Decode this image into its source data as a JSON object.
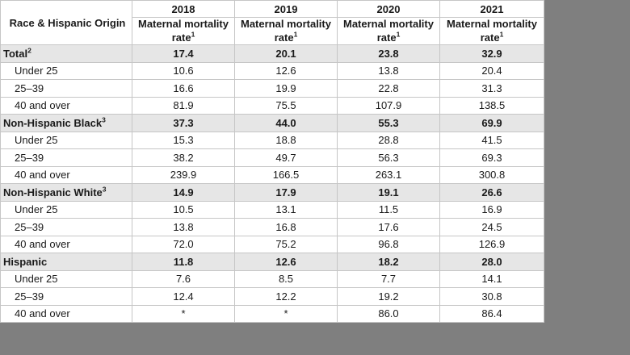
{
  "page": {
    "canvas_bg": "#7f7f7f"
  },
  "table": {
    "corner_header": "Race & Hispanic Origin",
    "years": [
      "2018",
      "2019",
      "2020",
      "2021"
    ],
    "measure_header": {
      "line1": "Maternal mortality",
      "line2": "rate",
      "sup": "1"
    },
    "colors": {
      "group_row_bg": "#e6e6e6",
      "border": "#c6c6c6",
      "text": "#1a1a1a",
      "table_bg": "#ffffff"
    },
    "rows": [
      {
        "label": "Total",
        "sup": "2",
        "type": "group",
        "values": [
          "17.4",
          "20.1",
          "23.8",
          "32.9"
        ]
      },
      {
        "label": "Under 25",
        "type": "sub",
        "values": [
          "10.6",
          "12.6",
          "13.8",
          "20.4"
        ]
      },
      {
        "label": "25–39",
        "type": "sub",
        "values": [
          "16.6",
          "19.9",
          "22.8",
          "31.3"
        ]
      },
      {
        "label": "40 and over",
        "type": "sub",
        "values": [
          "81.9",
          "75.5",
          "107.9",
          "138.5"
        ]
      },
      {
        "label": "Non-Hispanic Black",
        "sup": "3",
        "type": "group",
        "values": [
          "37.3",
          "44.0",
          "55.3",
          "69.9"
        ]
      },
      {
        "label": "Under 25",
        "type": "sub",
        "values": [
          "15.3",
          "18.8",
          "28.8",
          "41.5"
        ]
      },
      {
        "label": "25–39",
        "type": "sub",
        "values": [
          "38.2",
          "49.7",
          "56.3",
          "69.3"
        ]
      },
      {
        "label": "40 and over",
        "type": "sub",
        "values": [
          "239.9",
          "166.5",
          "263.1",
          "300.8"
        ]
      },
      {
        "label": "Non-Hispanic White",
        "sup": "3",
        "type": "group",
        "values": [
          "14.9",
          "17.9",
          "19.1",
          "26.6"
        ]
      },
      {
        "label": "Under 25",
        "type": "sub",
        "values": [
          "10.5",
          "13.1",
          "11.5",
          "16.9"
        ]
      },
      {
        "label": "25–39",
        "type": "sub",
        "values": [
          "13.8",
          "16.8",
          "17.6",
          "24.5"
        ]
      },
      {
        "label": "40 and over",
        "type": "sub",
        "values": [
          "72.0",
          "75.2",
          "96.8",
          "126.9"
        ]
      },
      {
        "label": "Hispanic",
        "type": "group",
        "values": [
          "11.8",
          "12.6",
          "18.2",
          "28.0"
        ]
      },
      {
        "label": "Under 25",
        "type": "sub",
        "values": [
          "7.6",
          "8.5",
          "7.7",
          "14.1"
        ]
      },
      {
        "label": "25–39",
        "type": "sub",
        "values": [
          "12.4",
          "12.2",
          "19.2",
          "30.8"
        ]
      },
      {
        "label": "40 and over",
        "type": "sub",
        "values": [
          "*",
          "*",
          "86.0",
          "86.4"
        ]
      }
    ]
  }
}
